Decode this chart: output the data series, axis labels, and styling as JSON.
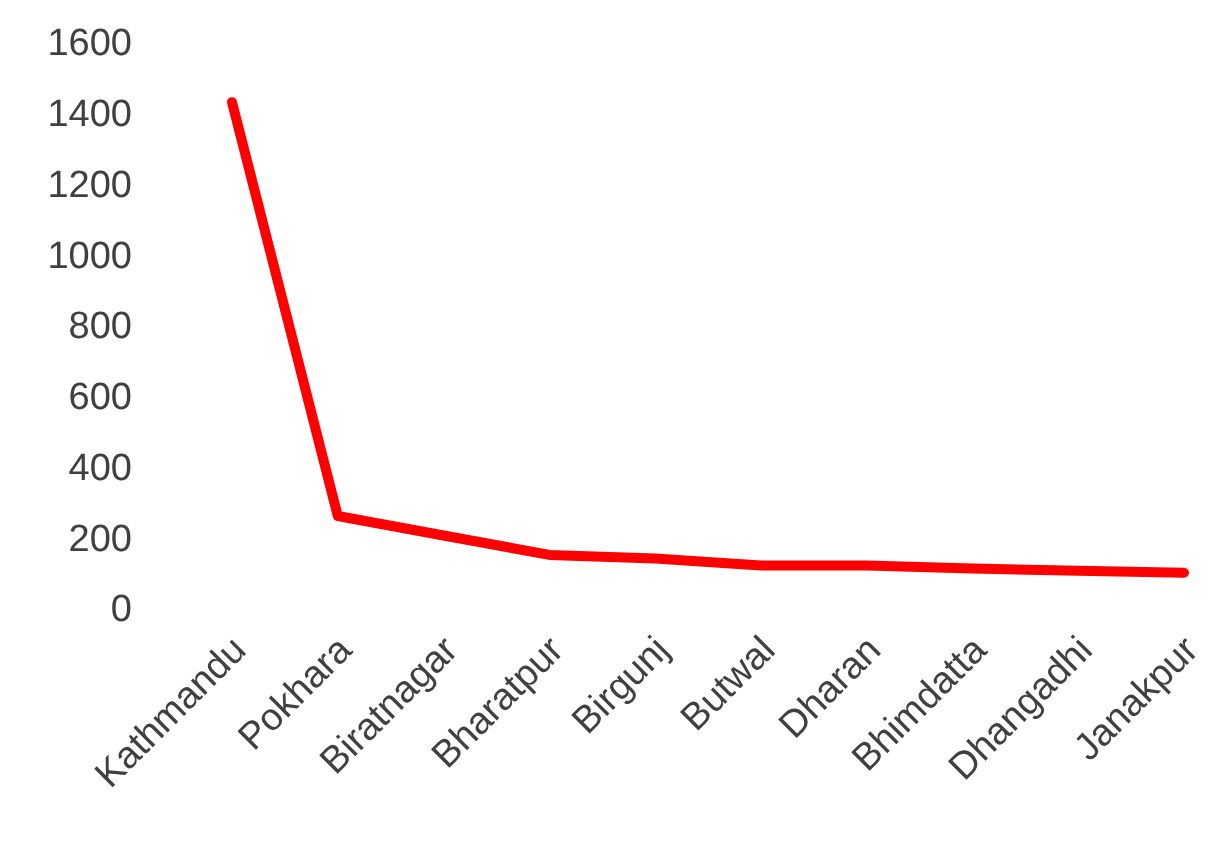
{
  "chart_data": {
    "type": "line",
    "categories": [
      "Kathmandu",
      "Pokhara",
      "Biratnagar",
      "Bharatpur",
      "Birgunj",
      "Butwal",
      "Dharan",
      "Bhimdatta",
      "Dhangadhi",
      "Janakpur"
    ],
    "series": [
      {
        "color": "#ff0000",
        "values": [
          1430,
          260,
          205,
          150,
          140,
          120,
          120,
          112,
          105,
          100
        ]
      }
    ],
    "ylim": [
      0,
      1600
    ],
    "yticks": [
      0,
      200,
      400,
      600,
      800,
      1000,
      1200,
      1400,
      1600
    ],
    "grid": false,
    "marker": "none",
    "line_style": "solid"
  }
}
